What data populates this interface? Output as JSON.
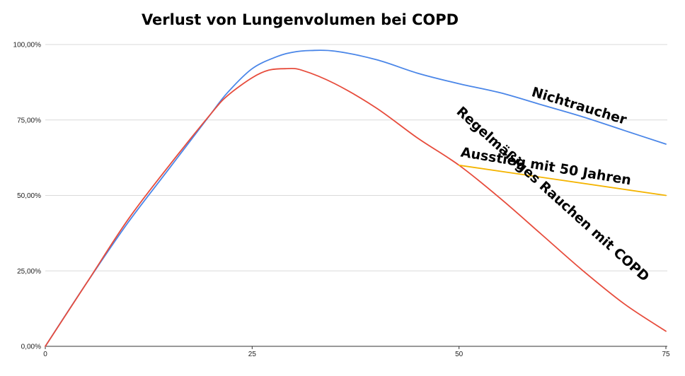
{
  "chart_data": {
    "type": "line",
    "title": "Verlust von Lungenvolumen bei COPD",
    "xlabel": "",
    "ylabel": "",
    "xlim": [
      0,
      75
    ],
    "ylim": [
      0,
      100
    ],
    "x_ticks": [
      0,
      25,
      50,
      75
    ],
    "x_tick_labels": [
      "0",
      "25",
      "50",
      "75"
    ],
    "y_ticks": [
      0,
      25,
      50,
      75,
      100
    ],
    "y_tick_labels": [
      "0,00%",
      "25,00%",
      "50,00%",
      "75,00%",
      "100,00%"
    ],
    "grid": true,
    "legend": "none",
    "series": [
      {
        "color": "#4a86e8",
        "x": [
          0,
          5,
          10,
          15,
          20,
          22,
          25,
          28,
          30,
          32,
          35,
          40,
          45,
          50,
          55,
          60,
          65,
          70,
          75
        ],
        "y": [
          0,
          21,
          41,
          59,
          77,
          84,
          92,
          96,
          97.5,
          98,
          97.8,
          95,
          90.5,
          87,
          84,
          80,
          76,
          71.5,
          67
        ]
      },
      {
        "color": "#e74c3c",
        "x": [
          0,
          5,
          10,
          15,
          20,
          22,
          25,
          27,
          29,
          31,
          35,
          40,
          45,
          50,
          55,
          60,
          65,
          70,
          75
        ],
        "y": [
          0,
          21,
          42,
          60,
          77,
          83,
          89,
          91.5,
          92,
          91.5,
          87,
          79,
          69,
          60,
          49,
          37,
          25,
          14,
          5
        ]
      },
      {
        "color": "#f4b400",
        "x": [
          50,
          75
        ],
        "y": [
          60,
          50
        ]
      }
    ],
    "annotations": [
      {
        "text": "Nichtraucher",
        "x": 64.5,
        "y": 79.5,
        "angle": 17
      },
      {
        "text": "Ausstieg mit 50 Jahren",
        "x": 60.5,
        "y": 59.5,
        "angle": 9.5
      },
      {
        "text": "Regelmäßiges Rauchen mit COPD",
        "x": 61.3,
        "y": 50.3,
        "angle": 42
      }
    ]
  }
}
